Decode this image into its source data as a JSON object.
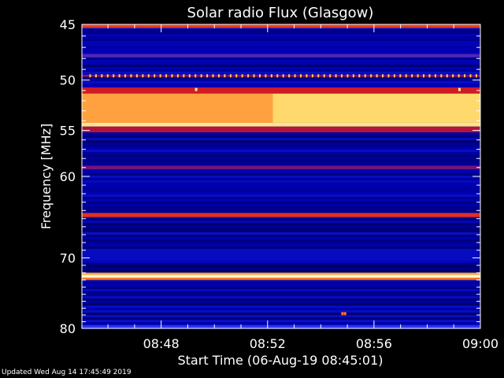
{
  "chart_data": {
    "type": "heatmap",
    "title": "Solar radio Flux (Glasgow)",
    "xlabel": "Start Time (06-Aug-19 08:45:01)",
    "ylabel": "Frequency [MHz]",
    "x_start": "08:45:01",
    "x_end": "09:00:00",
    "xlim_minutes_after_0845": [
      0.02,
      15.0
    ],
    "x_ticks": [
      {
        "label": "08:48",
        "minute": 3
      },
      {
        "label": "08:52",
        "minute": 7
      },
      {
        "label": "08:56",
        "minute": 11
      },
      {
        "label": "09:00",
        "minute": 15
      }
    ],
    "ylim_mhz": [
      45,
      80
    ],
    "y_scale": "log",
    "y_ticks": [
      {
        "label": "45",
        "mhz": 45
      },
      {
        "label": "50",
        "mhz": 50
      },
      {
        "label": "55",
        "mhz": 55
      },
      {
        "label": "60",
        "mhz": 60
      },
      {
        "label": "70",
        "mhz": 70
      },
      {
        "label": "80",
        "mhz": 80
      }
    ],
    "background_level": 0.12,
    "bands": [
      {
        "mhz_start": 45.0,
        "mhz_end": 45.3,
        "level": 0.62
      },
      {
        "mhz_start": 47.6,
        "mhz_end": 47.9,
        "level": 0.35
      },
      {
        "mhz_start": 49.5,
        "mhz_end": 49.7,
        "level": 0.45
      },
      {
        "mhz_start": 50.7,
        "mhz_end": 51.3,
        "level": 0.55
      },
      {
        "mhz_start": 51.3,
        "mhz_end": 54.2,
        "level": 0.8
      },
      {
        "mhz_start": 54.2,
        "mhz_end": 54.6,
        "level": 0.92
      },
      {
        "mhz_start": 54.6,
        "mhz_end": 55.2,
        "level": 0.5
      },
      {
        "mhz_start": 58.8,
        "mhz_end": 59.2,
        "level": 0.4
      },
      {
        "mhz_start": 64.3,
        "mhz_end": 64.8,
        "level": 0.6
      },
      {
        "mhz_start": 72.0,
        "mhz_end": 72.3,
        "level": 0.8
      },
      {
        "mhz_start": 72.3,
        "mhz_end": 72.7,
        "level": 1.0
      },
      {
        "mhz_start": 72.7,
        "mhz_end": 73.0,
        "level": 0.7
      },
      {
        "mhz_start": 79.5,
        "mhz_end": 80.0,
        "level": 0.3
      }
    ],
    "band_gradient": [
      {
        "minute_start": 0.0,
        "minute_end": 7.2,
        "mhz_start": 51.3,
        "mhz_end": 54.2,
        "level": 0.78
      },
      {
        "minute_start": 7.2,
        "minute_end": 15.0,
        "mhz_start": 51.3,
        "mhz_end": 54.2,
        "level": 0.88
      }
    ],
    "periodic_spikes": {
      "mhz": 49.6,
      "minute_start": 0.3,
      "minute_end": 15.0,
      "interval_minutes": 0.22,
      "level": 0.85
    },
    "point_features": [
      {
        "minute": 4.3,
        "mhz": 50.9,
        "level": 0.95
      },
      {
        "minute": 14.2,
        "mhz": 50.9,
        "level": 0.95
      },
      {
        "minute": 9.8,
        "mhz": 77.8,
        "level": 0.7
      },
      {
        "minute": 9.9,
        "mhz": 77.8,
        "level": 0.7
      }
    ],
    "colormap": [
      "#000033",
      "#0000b4",
      "#1e3cff",
      "#8c0a5a",
      "#dc1e1e",
      "#ff7828",
      "#ffd25a",
      "#ffffd2"
    ]
  },
  "footer": {
    "updated": "Updated Wed Aug 14 17:45:49 2019"
  }
}
